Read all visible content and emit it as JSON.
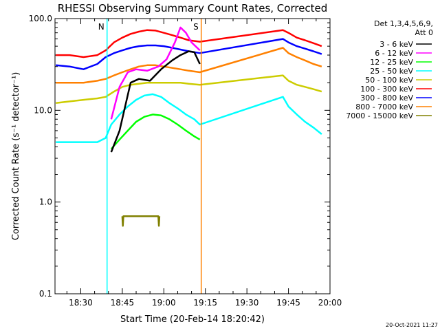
{
  "chart_data": {
    "type": "line",
    "title": "RHESSI Observing Summary Count Rates, Corrected",
    "xlabel": "Start Time (20-Feb-14 18:20:42)",
    "ylabel": "Corrected Count Rate (s⁻¹ detector⁻¹)",
    "y_scale": "log",
    "ylim": [
      0.1,
      100
    ],
    "xlim": [
      "18:20:42",
      "20:00:00"
    ],
    "yticks": [
      "0.1",
      "1.0",
      "10.0",
      "100.0"
    ],
    "yticks_values": [
      0.1,
      1,
      10,
      100
    ],
    "xticks": [
      "18:30",
      "18:45",
      "19:00",
      "19:15",
      "19:30",
      "19:45",
      "20:00"
    ],
    "xticks_minutes": [
      1110,
      1125,
      1140,
      1155,
      1170,
      1185,
      1200
    ],
    "legend_header": [
      "Det 1,3,4,5,6,9,",
      "Att 0"
    ],
    "legend_position": "right",
    "series": [
      {
        "name": "3 - 6 keV",
        "color": "#000000",
        "x": [
          1121,
          1124,
          1128,
          1131,
          1135,
          1139,
          1143,
          1146,
          1149,
          1151,
          1153
        ],
        "y": [
          3.5,
          6,
          20,
          22,
          21,
          28,
          35,
          40,
          44,
          43,
          32
        ]
      },
      {
        "name": "6 - 12 keV",
        "color": "#ff00ff",
        "x": [
          1121,
          1124,
          1127,
          1130,
          1134,
          1138,
          1141,
          1144,
          1146,
          1148,
          1150,
          1153
        ],
        "y": [
          8,
          18,
          26,
          28,
          27,
          30,
          36,
          55,
          80,
          70,
          55,
          45
        ]
      },
      {
        "name": "12 - 25 keV",
        "color": "#00ff00",
        "x": [
          1121,
          1124,
          1127,
          1130,
          1133,
          1136,
          1139,
          1142,
          1145,
          1148,
          1151,
          1153
        ],
        "y": [
          3.8,
          4.8,
          6,
          7.5,
          8.5,
          9,
          8.8,
          8,
          7,
          6,
          5.2,
          4.8
        ]
      },
      {
        "name": "25 - 50 keV",
        "color": "#00ffff",
        "x": [
          1101,
          1104,
          1107,
          1110,
          1113,
          1116,
          1119,
          1121,
          1124,
          1127,
          1130,
          1133,
          1136,
          1139,
          1142,
          1145,
          1148,
          1151,
          1153,
          1183,
          1185,
          1188,
          1191,
          1194,
          1197
        ],
        "y": [
          4.5,
          4.5,
          4.5,
          4.5,
          4.5,
          4.5,
          5,
          7,
          9,
          11,
          13,
          14.5,
          15,
          14,
          12,
          10.5,
          9,
          8,
          7,
          14,
          11,
          9,
          7.5,
          6.5,
          5.5
        ]
      },
      {
        "name": "50 - 100 keV",
        "color": "#cccc00",
        "x": [
          1101,
          1106,
          1111,
          1116,
          1119,
          1122,
          1125,
          1128,
          1131,
          1134,
          1137,
          1140,
          1143,
          1146,
          1149,
          1153,
          1183,
          1185,
          1188,
          1191,
          1194,
          1197
        ],
        "y": [
          12,
          12.5,
          13,
          13.5,
          14,
          16,
          18,
          19,
          19.5,
          20,
          20,
          20,
          20,
          20,
          19.5,
          19,
          24,
          21,
          19,
          18,
          17,
          16
        ]
      },
      {
        "name": "100 - 300 keV",
        "color": "#ff0000",
        "x": [
          1101,
          1106,
          1111,
          1116,
          1119,
          1122,
          1125,
          1128,
          1131,
          1134,
          1137,
          1140,
          1143,
          1146,
          1149,
          1153,
          1183,
          1185,
          1188,
          1191,
          1194,
          1197
        ],
        "y": [
          40,
          40,
          38,
          40,
          45,
          55,
          62,
          68,
          72,
          75,
          74,
          70,
          66,
          62,
          58,
          56,
          75,
          70,
          62,
          58,
          54,
          50
        ]
      },
      {
        "name": "300 - 800 keV",
        "color": "#0000ff",
        "x": [
          1101,
          1106,
          1111,
          1116,
          1119,
          1122,
          1125,
          1128,
          1131,
          1134,
          1137,
          1140,
          1143,
          1146,
          1149,
          1153,
          1183,
          1185,
          1188,
          1191,
          1194,
          1197
        ],
        "y": [
          31,
          30,
          28,
          32,
          38,
          42,
          45,
          48,
          50,
          51,
          51,
          50,
          48,
          46,
          44,
          42,
          60,
          55,
          50,
          47,
          44,
          41
        ]
      },
      {
        "name": "800 - 7000 keV",
        "color": "#ff8000",
        "x": [
          1101,
          1106,
          1111,
          1116,
          1119,
          1122,
          1125,
          1128,
          1131,
          1134,
          1137,
          1140,
          1143,
          1146,
          1149,
          1153,
          1183,
          1185,
          1188,
          1191,
          1194,
          1197
        ],
        "y": [
          20,
          20,
          20,
          21,
          22,
          24,
          26,
          28,
          30,
          31,
          31,
          30,
          29,
          28,
          27,
          26,
          48,
          42,
          38,
          35,
          32,
          30
        ]
      },
      {
        "name": "7000 - 15000 keV",
        "color": "#808000",
        "x": [
          1125,
          1125.2,
          1125.4,
          1138,
          1138.2,
          1138.4
        ],
        "y": [
          0.7,
          0.55,
          0.7,
          0.7,
          0.55,
          0.7
        ]
      }
    ],
    "markers": [
      {
        "label": "N",
        "minute": 1119.5,
        "color": "#00ffff"
      },
      {
        "label": "S",
        "minute": 1153.5,
        "color": "#ff8000"
      }
    ],
    "annotations": {
      "timestamp": "20-Oct-2021 11:27"
    }
  }
}
